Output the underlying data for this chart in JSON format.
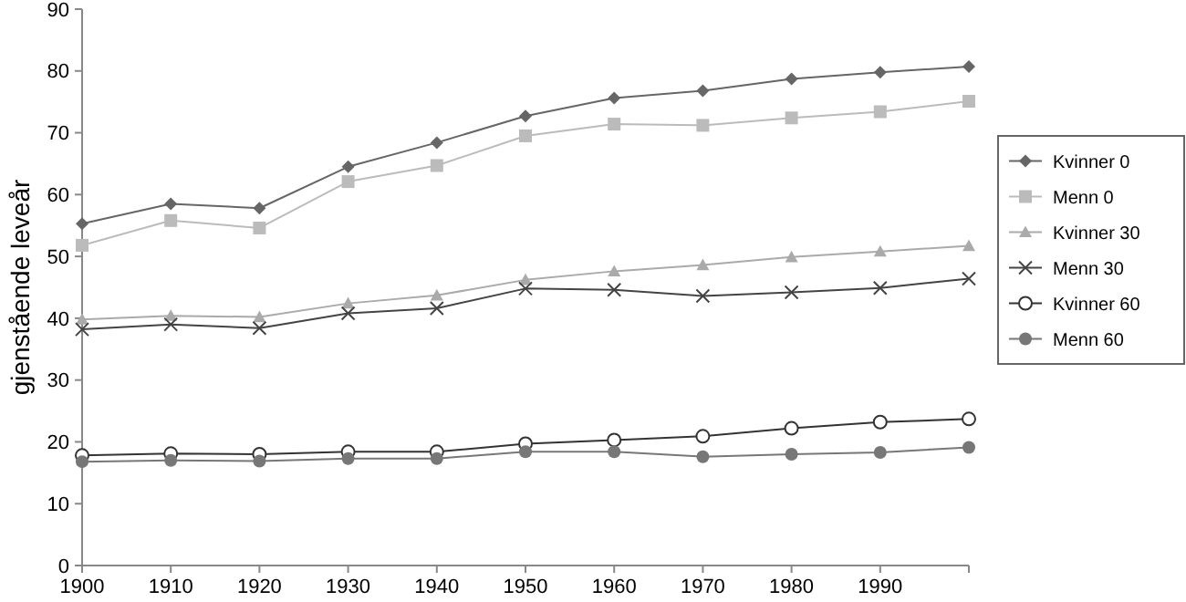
{
  "chart_data": {
    "type": "line",
    "ylabel": "gjenstående leveår",
    "x": [
      1900,
      1910,
      1920,
      1930,
      1940,
      1950,
      1960,
      1970,
      1980,
      1990,
      2000
    ],
    "xlim": [
      1900,
      2000
    ],
    "xticks": [
      1900,
      1910,
      1920,
      1930,
      1940,
      1950,
      1960,
      1970,
      1980,
      1990,
      {
        "value": 2000,
        "label": null
      }
    ],
    "ylim": [
      0,
      90
    ],
    "yticks": [
      0,
      10,
      20,
      30,
      40,
      50,
      60,
      70,
      80,
      90
    ],
    "grid": false,
    "legend": "right",
    "series": [
      {
        "name": "Kvinner 0",
        "color": "#666666",
        "marker": "diamond",
        "values": [
          55.3,
          58.5,
          57.8,
          64.5,
          68.4,
          72.7,
          75.6,
          76.8,
          78.7,
          79.8,
          80.7
        ]
      },
      {
        "name": "Menn 0",
        "color": "#bbbbbb",
        "marker": "square",
        "values": [
          51.8,
          55.8,
          54.6,
          62.1,
          64.7,
          69.5,
          71.4,
          71.2,
          72.4,
          73.4,
          75.1
        ]
      },
      {
        "name": "Kvinner 30",
        "color": "#aaaaaa",
        "marker": "triangle",
        "values": [
          39.8,
          40.4,
          40.2,
          42.4,
          43.7,
          46.2,
          47.6,
          48.6,
          49.9,
          50.8,
          51.7
        ]
      },
      {
        "name": "Menn 30",
        "color": "#444444",
        "marker": "cross",
        "values": [
          38.2,
          39.0,
          38.4,
          40.8,
          41.6,
          44.8,
          44.6,
          43.6,
          44.2,
          44.9,
          46.4
        ]
      },
      {
        "name": "Kvinner 60",
        "color": "#333333",
        "marker": "circle-open",
        "values": [
          17.8,
          18.1,
          18.0,
          18.4,
          18.4,
          19.7,
          20.3,
          20.9,
          22.2,
          23.2,
          23.7
        ]
      },
      {
        "name": "Menn 60",
        "color": "#777777",
        "marker": "circle",
        "values": [
          16.8,
          17.0,
          16.9,
          17.3,
          17.3,
          18.4,
          18.4,
          17.6,
          18.0,
          18.3,
          19.1
        ]
      }
    ]
  }
}
